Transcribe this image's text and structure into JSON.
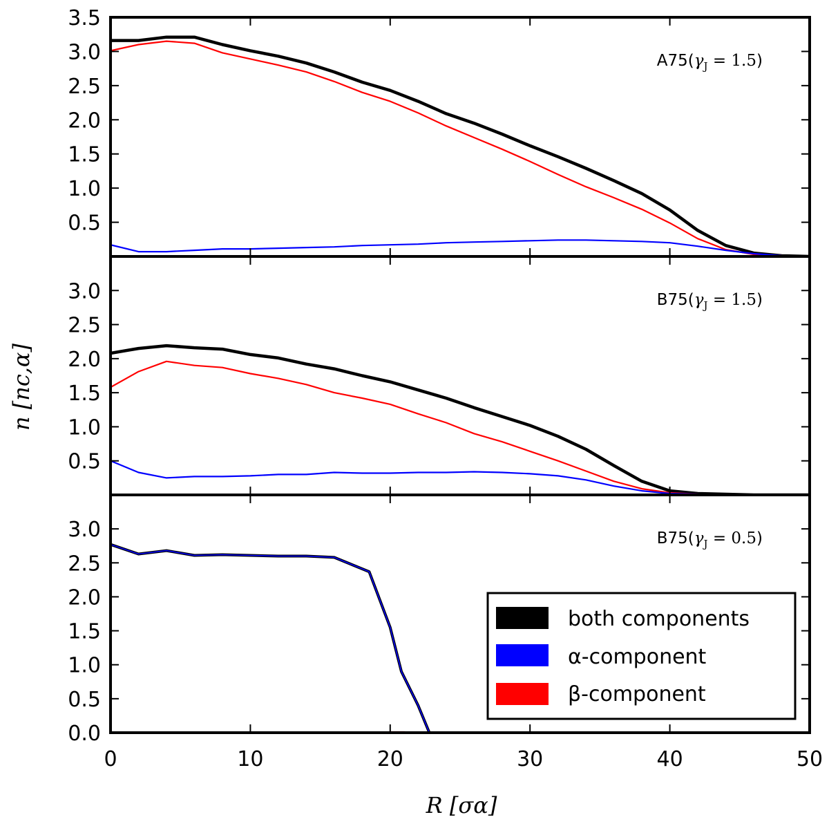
{
  "chart_data": {
    "type": "line",
    "xlabel": "R [σα]",
    "ylabel": "n [nc,α]",
    "xlim": [
      0,
      50
    ],
    "xticks": [
      0,
      10,
      20,
      30,
      40,
      50
    ],
    "series_styles": [
      {
        "key": "both",
        "color": "#000000",
        "name": "both components"
      },
      {
        "key": "alpha",
        "color": "#0000ff",
        "name": "α-component"
      },
      {
        "key": "beta",
        "color": "#ff0000",
        "name": "β-component"
      }
    ],
    "legend": {
      "placement": "lower-right of bottom panel",
      "entries": [
        {
          "label": "both components",
          "color": "#000000"
        },
        {
          "label": "α-component",
          "color": "#0000ff"
        },
        {
          "label": "β-component",
          "color": "#ff0000"
        }
      ]
    },
    "panels": [
      {
        "id": "top",
        "label": "A75(γJ = 1.5)",
        "ylim": [
          0,
          3.5
        ],
        "yticks": [
          0.5,
          1.0,
          1.5,
          2.0,
          2.5,
          3.0,
          3.5
        ],
        "series": [
          {
            "key": "both",
            "points": [
              [
                0,
                3.16
              ],
              [
                2,
                3.16
              ],
              [
                4,
                3.21
              ],
              [
                6,
                3.21
              ],
              [
                8,
                3.1
              ],
              [
                10,
                3.01
              ],
              [
                12,
                2.93
              ],
              [
                14,
                2.83
              ],
              [
                16,
                2.7
              ],
              [
                18,
                2.55
              ],
              [
                20,
                2.43
              ],
              [
                22,
                2.27
              ],
              [
                24,
                2.09
              ],
              [
                26,
                1.95
              ],
              [
                28,
                1.79
              ],
              [
                30,
                1.62
              ],
              [
                32,
                1.46
              ],
              [
                34,
                1.29
              ],
              [
                36,
                1.11
              ],
              [
                38,
                0.92
              ],
              [
                40,
                0.68
              ],
              [
                42,
                0.38
              ],
              [
                44,
                0.16
              ],
              [
                46,
                0.05
              ],
              [
                48,
                0.01
              ],
              [
                50,
                0.0
              ]
            ]
          },
          {
            "key": "beta",
            "points": [
              [
                0,
                3.01
              ],
              [
                2,
                3.1
              ],
              [
                4,
                3.15
              ],
              [
                6,
                3.12
              ],
              [
                8,
                2.98
              ],
              [
                10,
                2.89
              ],
              [
                12,
                2.8
              ],
              [
                14,
                2.7
              ],
              [
                16,
                2.56
              ],
              [
                18,
                2.4
              ],
              [
                20,
                2.27
              ],
              [
                22,
                2.1
              ],
              [
                24,
                1.91
              ],
              [
                26,
                1.74
              ],
              [
                28,
                1.57
              ],
              [
                30,
                1.39
              ],
              [
                32,
                1.2
              ],
              [
                34,
                1.02
              ],
              [
                36,
                0.86
              ],
              [
                38,
                0.69
              ],
              [
                40,
                0.49
              ],
              [
                42,
                0.26
              ],
              [
                44,
                0.1
              ],
              [
                46,
                0.03
              ],
              [
                48,
                0.01
              ],
              [
                50,
                0.0
              ]
            ]
          },
          {
            "key": "alpha",
            "points": [
              [
                0,
                0.17
              ],
              [
                2,
                0.07
              ],
              [
                4,
                0.07
              ],
              [
                6,
                0.09
              ],
              [
                8,
                0.11
              ],
              [
                10,
                0.11
              ],
              [
                12,
                0.12
              ],
              [
                14,
                0.13
              ],
              [
                16,
                0.14
              ],
              [
                18,
                0.16
              ],
              [
                20,
                0.17
              ],
              [
                22,
                0.18
              ],
              [
                24,
                0.2
              ],
              [
                26,
                0.21
              ],
              [
                28,
                0.22
              ],
              [
                30,
                0.23
              ],
              [
                32,
                0.24
              ],
              [
                34,
                0.24
              ],
              [
                36,
                0.23
              ],
              [
                38,
                0.22
              ],
              [
                40,
                0.2
              ],
              [
                42,
                0.15
              ],
              [
                44,
                0.09
              ],
              [
                46,
                0.04
              ],
              [
                48,
                0.01
              ],
              [
                50,
                0.0
              ]
            ]
          }
        ]
      },
      {
        "id": "middle",
        "label": "B75(γJ = 1.5)",
        "ylim": [
          0,
          3.5
        ],
        "yticks": [
          0.5,
          1.0,
          1.5,
          2.0,
          2.5,
          3.0
        ],
        "series": [
          {
            "key": "both",
            "points": [
              [
                0,
                2.08
              ],
              [
                2,
                2.15
              ],
              [
                4,
                2.19
              ],
              [
                6,
                2.16
              ],
              [
                8,
                2.14
              ],
              [
                10,
                2.06
              ],
              [
                12,
                2.01
              ],
              [
                14,
                1.92
              ],
              [
                16,
                1.85
              ],
              [
                18,
                1.75
              ],
              [
                20,
                1.66
              ],
              [
                22,
                1.54
              ],
              [
                24,
                1.42
              ],
              [
                26,
                1.28
              ],
              [
                28,
                1.15
              ],
              [
                30,
                1.02
              ],
              [
                32,
                0.86
              ],
              [
                34,
                0.67
              ],
              [
                36,
                0.43
              ],
              [
                38,
                0.2
              ],
              [
                40,
                0.06
              ],
              [
                42,
                0.02
              ],
              [
                44,
                0.01
              ],
              [
                46,
                0.0
              ],
              [
                48,
                0.0
              ],
              [
                50,
                0.0
              ]
            ]
          },
          {
            "key": "beta",
            "points": [
              [
                0,
                1.58
              ],
              [
                2,
                1.81
              ],
              [
                4,
                1.96
              ],
              [
                6,
                1.9
              ],
              [
                8,
                1.87
              ],
              [
                10,
                1.78
              ],
              [
                12,
                1.71
              ],
              [
                14,
                1.62
              ],
              [
                16,
                1.5
              ],
              [
                18,
                1.42
              ],
              [
                20,
                1.33
              ],
              [
                22,
                1.19
              ],
              [
                24,
                1.06
              ],
              [
                26,
                0.9
              ],
              [
                28,
                0.78
              ],
              [
                30,
                0.64
              ],
              [
                32,
                0.5
              ],
              [
                34,
                0.35
              ],
              [
                36,
                0.2
              ],
              [
                38,
                0.09
              ],
              [
                40,
                0.03
              ],
              [
                42,
                0.01
              ],
              [
                44,
                0.0
              ],
              [
                46,
                0.0
              ],
              [
                48,
                0.0
              ],
              [
                50,
                0.0
              ]
            ]
          },
          {
            "key": "alpha",
            "points": [
              [
                0,
                0.5
              ],
              [
                2,
                0.33
              ],
              [
                4,
                0.25
              ],
              [
                6,
                0.27
              ],
              [
                8,
                0.27
              ],
              [
                10,
                0.28
              ],
              [
                12,
                0.3
              ],
              [
                14,
                0.3
              ],
              [
                16,
                0.33
              ],
              [
                18,
                0.32
              ],
              [
                20,
                0.32
              ],
              [
                22,
                0.33
              ],
              [
                24,
                0.33
              ],
              [
                26,
                0.34
              ],
              [
                28,
                0.33
              ],
              [
                30,
                0.31
              ],
              [
                32,
                0.28
              ],
              [
                34,
                0.22
              ],
              [
                36,
                0.13
              ],
              [
                38,
                0.06
              ],
              [
                40,
                0.02
              ],
              [
                42,
                0.01
              ],
              [
                44,
                0.0
              ],
              [
                46,
                0.0
              ],
              [
                48,
                0.0
              ],
              [
                50,
                0.0
              ]
            ]
          }
        ]
      },
      {
        "id": "bottom",
        "label": "B75(γJ = 0.5)",
        "ylim": [
          0,
          3.5
        ],
        "yticks": [
          0.0,
          0.5,
          1.0,
          1.5,
          2.0,
          2.5,
          3.0
        ],
        "series": [
          {
            "key": "beta",
            "points": [
              [
                19,
                0.0
              ],
              [
                20,
                0.01
              ],
              [
                21,
                0.01
              ],
              [
                22,
                0.0
              ]
            ]
          },
          {
            "key": "both",
            "points": [
              [
                0,
                2.77
              ],
              [
                2,
                2.63
              ],
              [
                4,
                2.68
              ],
              [
                6,
                2.61
              ],
              [
                8,
                2.62
              ],
              [
                10,
                2.61
              ],
              [
                12,
                2.6
              ],
              [
                14,
                2.6
              ],
              [
                16,
                2.58
              ],
              [
                18.5,
                2.37
              ],
              [
                20,
                1.55
              ],
              [
                20.8,
                0.9
              ],
              [
                22,
                0.4
              ],
              [
                22.8,
                0.0
              ]
            ]
          },
          {
            "key": "alpha",
            "points": [
              [
                0,
                2.77
              ],
              [
                2,
                2.63
              ],
              [
                4,
                2.68
              ],
              [
                6,
                2.61
              ],
              [
                8,
                2.62
              ],
              [
                10,
                2.61
              ],
              [
                12,
                2.6
              ],
              [
                14,
                2.6
              ],
              [
                16,
                2.58
              ],
              [
                18.5,
                2.37
              ],
              [
                20,
                1.55
              ],
              [
                20.8,
                0.9
              ],
              [
                22,
                0.4
              ],
              [
                22.8,
                0.0
              ]
            ]
          }
        ]
      }
    ]
  }
}
